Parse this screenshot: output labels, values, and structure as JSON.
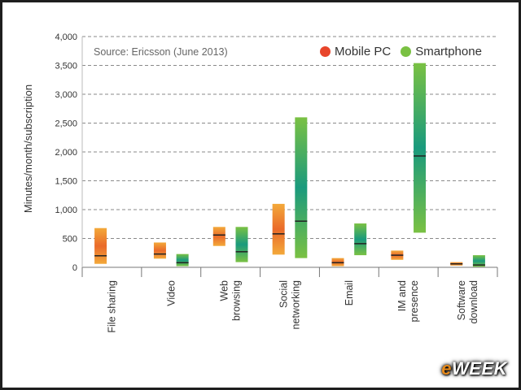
{
  "chart_data": {
    "type": "range-bar",
    "source": "Source: Ericsson (June 2013)",
    "ylabel": "Minutes/month/subscription",
    "ylim": [
      0,
      4000
    ],
    "yticks": [
      "0",
      "500",
      "1,000",
      "1,500",
      "2,000",
      "2,500",
      "3,000",
      "3,500",
      "4,000"
    ],
    "categories": [
      [
        "File sharing"
      ],
      [
        "Video"
      ],
      [
        "Web",
        "browsing"
      ],
      [
        "Social",
        "networking"
      ],
      [
        "Email"
      ],
      [
        "IM and",
        "presence"
      ],
      [
        "Software",
        "download"
      ]
    ],
    "series": [
      {
        "name": "Mobile PC",
        "color": "#e8452b",
        "ranges": [
          {
            "low": 60,
            "high": 680,
            "median": 200
          },
          {
            "low": 150,
            "high": 430,
            "median": 230
          },
          {
            "low": 370,
            "high": 700,
            "median": 560
          },
          {
            "low": 220,
            "high": 1100,
            "median": 580
          },
          {
            "low": 20,
            "high": 160,
            "median": 80
          },
          {
            "low": 130,
            "high": 290,
            "median": 210
          },
          {
            "low": 30,
            "high": 90,
            "median": 60
          }
        ]
      },
      {
        "name": "Smartphone",
        "color": "#7ac143",
        "ranges": [
          null,
          {
            "low": 20,
            "high": 230,
            "median": 80
          },
          {
            "low": 90,
            "high": 700,
            "median": 270
          },
          {
            "low": 160,
            "high": 2600,
            "median": 800
          },
          {
            "low": 210,
            "high": 760,
            "median": 410
          },
          {
            "low": 600,
            "high": 3540,
            "median": 1930
          },
          {
            "low": 10,
            "high": 210,
            "median": 40
          }
        ]
      }
    ],
    "grid": true,
    "legend": "top-right"
  },
  "watermark": {
    "prefix": "e",
    "rest": "WEEK"
  }
}
